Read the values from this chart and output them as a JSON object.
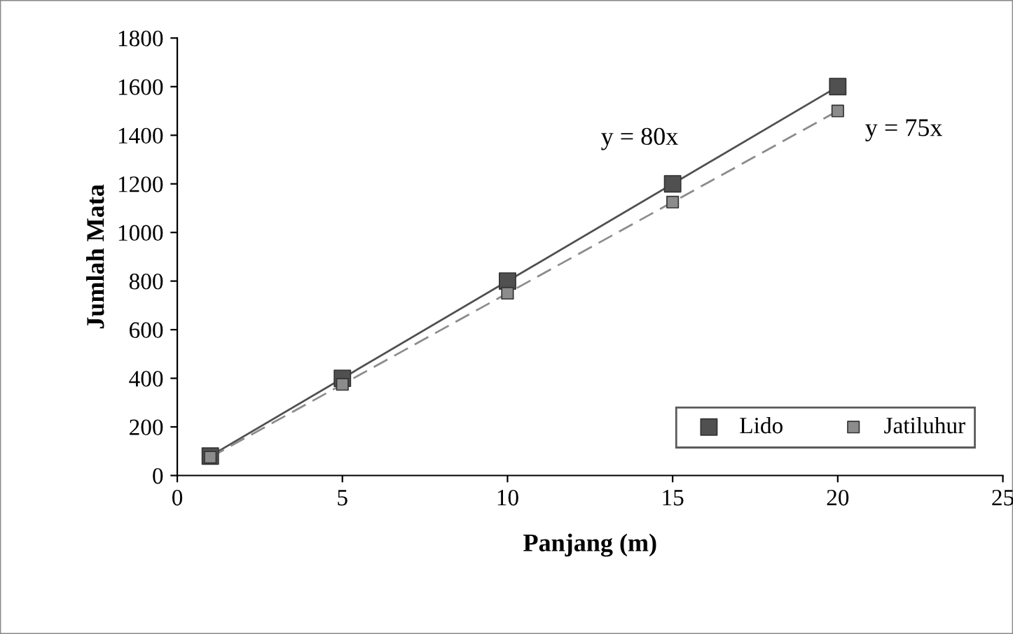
{
  "chart_data": {
    "type": "scatter",
    "xlabel": "Panjang (m)",
    "ylabel": "Jumlah Mata",
    "xlim": [
      0,
      25
    ],
    "xticks": [
      0,
      5,
      10,
      15,
      20,
      25
    ],
    "ylim": [
      0,
      1800
    ],
    "yticks": [
      0,
      200,
      400,
      600,
      800,
      1000,
      1200,
      1400,
      1600,
      1800
    ],
    "grid": false,
    "legend": "bottom right",
    "marker": "square",
    "series": [
      {
        "name": "Lido",
        "color": "#505050",
        "x": [
          1,
          5,
          10,
          15,
          20
        ],
        "values": [
          80,
          400,
          800,
          1200,
          1600
        ]
      },
      {
        "name": "Jatiluhur",
        "color": "#8c8c8c",
        "x": [
          1,
          5,
          10,
          15,
          20
        ],
        "values": [
          75,
          375,
          750,
          1125,
          1500
        ]
      },
      {
        "type": "line",
        "color": "#505050",
        "line_style": "solid",
        "marker": "none",
        "x": [
          1,
          20
        ],
        "values": [
          80,
          1600
        ]
      },
      {
        "type": "line",
        "color": "#8c8c8c",
        "line_style": "dashed",
        "marker": "none",
        "x": [
          1,
          20
        ],
        "values": [
          75,
          1500
        ]
      }
    ],
    "annotations": [
      "y = 80x",
      "y = 75x"
    ]
  }
}
